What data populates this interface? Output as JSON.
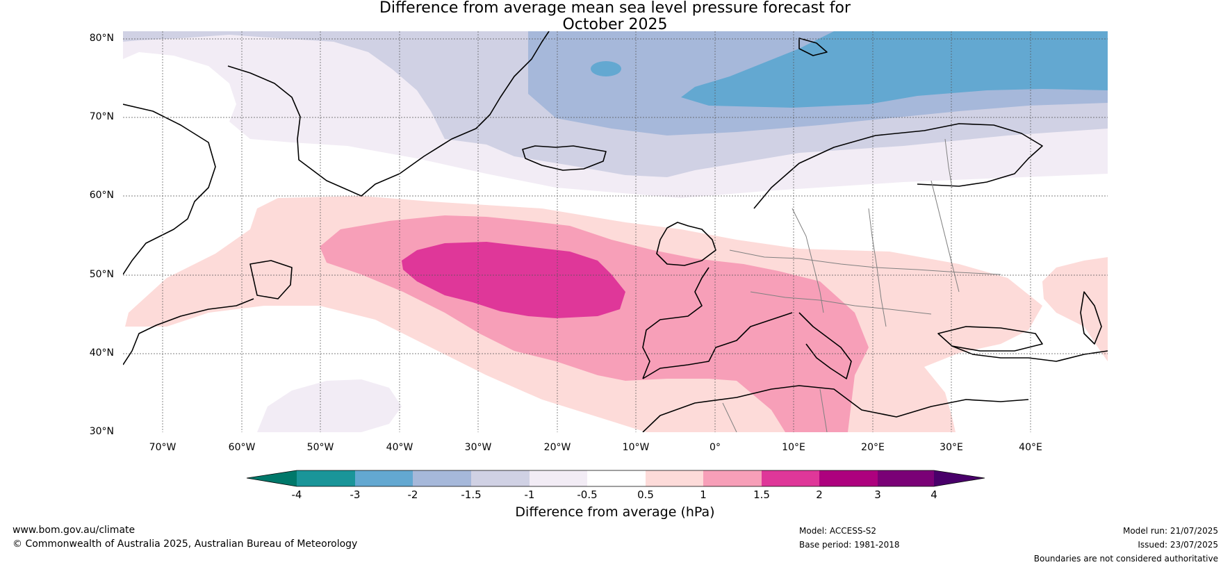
{
  "title_line1": "Difference from average mean sea level pressure forecast for",
  "title_line2": "October 2025",
  "map": {
    "lat_labels": [
      "80°N",
      "70°N",
      "60°N",
      "50°N",
      "40°N",
      "30°N"
    ],
    "lon_labels": [
      "70°W",
      "60°W",
      "50°W",
      "40°W",
      "30°W",
      "20°W",
      "10°W",
      "0°",
      "10°E",
      "20°E",
      "30°E",
      "40°E"
    ]
  },
  "legend": {
    "ticks": [
      "-4",
      "-3",
      "-2",
      "-1.5",
      "-1",
      "-0.5",
      "0.5",
      "1",
      "1.5",
      "2",
      "3",
      "4"
    ],
    "colors": [
      "#00786a",
      "#1a9599",
      "#63a8d1",
      "#a6b8da",
      "#d0d1e4",
      "#f2ecf5",
      "#ffffff",
      "#fddbd9",
      "#f79fb8",
      "#df3799",
      "#ad017e",
      "#7a0176",
      "#49006a"
    ],
    "label": "Difference from average (hPa)"
  },
  "footer": {
    "website": "www.bom.gov.au/climate",
    "copyright": "© Commonwealth of Australia 2025, Australian Bureau of Meteorology",
    "model": "Model: ACCESS-S2",
    "base_period": "Base period: 1981-2018",
    "model_run": "Model run: 21/07/2025",
    "issued": "Issued: 23/07/2025",
    "disclaimer": "Boundaries are not considered authoritative"
  }
}
